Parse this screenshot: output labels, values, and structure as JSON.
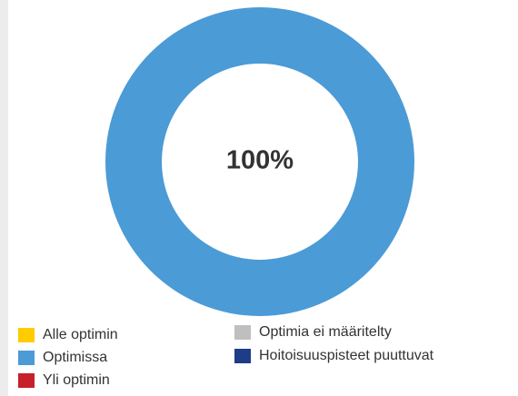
{
  "chart_data": {
    "type": "donut",
    "categories": [
      "Alle optimin",
      "Optimissa",
      "Yli optimin",
      "Optimia ei määritelty",
      "Hoitoisuuspisteet puuttuvat"
    ],
    "values": [
      0,
      100,
      0,
      0,
      0
    ],
    "value_labels": [
      null,
      "100%",
      null,
      null,
      null
    ],
    "colors": [
      "#ffcc00",
      "#4b9bd6",
      "#c8202a",
      "#bfbfbf",
      "#1f3c88"
    ],
    "legend": "bottom"
  }
}
